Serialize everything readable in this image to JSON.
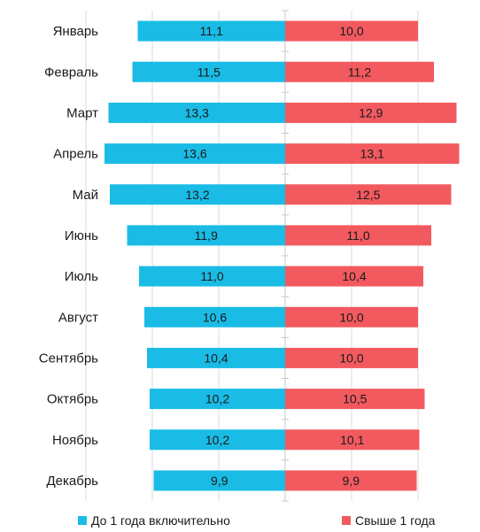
{
  "chart_data": {
    "type": "bar",
    "orientation": "horizontal-diverging",
    "categories": [
      "Январь",
      "Февраль",
      "Март",
      "Апрель",
      "Май",
      "Июнь",
      "Июль",
      "Август",
      "Сентябрь",
      "Октябрь",
      "Ноябрь",
      "Декабрь"
    ],
    "series": [
      {
        "name": "До 1 года включительно",
        "side": "left",
        "color": "#1ABCE6",
        "values": [
          11.1,
          11.5,
          13.3,
          13.6,
          13.2,
          11.9,
          11.0,
          10.6,
          10.4,
          10.2,
          10.2,
          9.9
        ],
        "labels": [
          "11,1",
          "11,5",
          "13,3",
          "13,6",
          "13,2",
          "11,9",
          "11,0",
          "10,6",
          "10,4",
          "10,2",
          "10,2",
          "9,9"
        ]
      },
      {
        "name": "Свыше 1 года",
        "side": "right",
        "color": "#F25A5F",
        "values": [
          10.0,
          11.2,
          12.9,
          13.1,
          12.5,
          11.0,
          10.4,
          10.0,
          10.0,
          10.5,
          10.1,
          9.9
        ],
        "labels": [
          "10,0",
          "11,2",
          "12,9",
          "13,1",
          "12,5",
          "11,0",
          "10,4",
          "10,0",
          "10,0",
          "10,5",
          "10,1",
          "9,9"
        ]
      }
    ],
    "xlim": [
      -15,
      15
    ],
    "grid": true,
    "legend_position": "bottom"
  },
  "legend": {
    "left_label": "До 1 года включительно",
    "right_label": "Свыше 1 года"
  }
}
